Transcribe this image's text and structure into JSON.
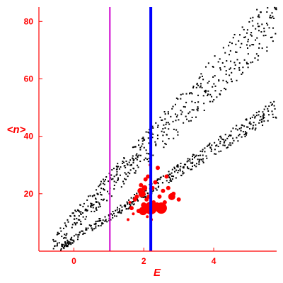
{
  "chart_data": {
    "type": "scatter",
    "title": "",
    "xlabel": "E",
    "ylabel": "<n>",
    "xlim": [
      -1.0,
      5.8
    ],
    "ylim": [
      0,
      85
    ],
    "xticks": [
      0,
      2,
      4
    ],
    "yticks": [
      20,
      40,
      60,
      80
    ],
    "grid": false,
    "legend": "none",
    "colors": {
      "axis": "#ff0000",
      "black_points": "#000000",
      "red_points": "#ff0000",
      "blue_line": "#0000ff",
      "magenta_line": "#cc00cc"
    },
    "vertical_lines": [
      {
        "name": "magenta",
        "x": 1.03,
        "color": "#cc00cc"
      },
      {
        "name": "blue",
        "x": 2.2,
        "color": "#0000ff"
      }
    ],
    "upper_band": {
      "x_start": -0.6,
      "x_end": 5.8,
      "y_start": 3,
      "y_end": 82,
      "spread": 7
    },
    "lower_band": {
      "x_start": -0.4,
      "x_end": 5.8,
      "y_start": 1,
      "y_end": 50,
      "spread": 2.5
    },
    "red_points": [
      {
        "x": 1.65,
        "y": 15,
        "size": 3
      },
      {
        "x": 1.7,
        "y": 13,
        "size": 2
      },
      {
        "x": 1.75,
        "y": 18,
        "size": 3
      },
      {
        "x": 1.8,
        "y": 19,
        "size": 3
      },
      {
        "x": 1.85,
        "y": 14,
        "size": 3
      },
      {
        "x": 1.9,
        "y": 21,
        "size": 4
      },
      {
        "x": 1.92,
        "y": 23,
        "size": 3
      },
      {
        "x": 1.95,
        "y": 20,
        "size": 5
      },
      {
        "x": 1.98,
        "y": 14,
        "size": 6
      },
      {
        "x": 2.0,
        "y": 16,
        "size": 4
      },
      {
        "x": 2.02,
        "y": 22,
        "size": 4
      },
      {
        "x": 2.05,
        "y": 25,
        "size": 3
      },
      {
        "x": 2.08,
        "y": 18,
        "size": 3
      },
      {
        "x": 2.1,
        "y": 12,
        "size": 2
      },
      {
        "x": 2.12,
        "y": 26,
        "size": 3
      },
      {
        "x": 2.15,
        "y": 19,
        "size": 3
      },
      {
        "x": 2.2,
        "y": 15,
        "size": 9
      },
      {
        "x": 2.25,
        "y": 22,
        "size": 3
      },
      {
        "x": 2.28,
        "y": 17,
        "size": 3
      },
      {
        "x": 2.3,
        "y": 15,
        "size": 5
      },
      {
        "x": 2.33,
        "y": 24,
        "size": 3
      },
      {
        "x": 2.38,
        "y": 16,
        "size": 4
      },
      {
        "x": 2.4,
        "y": 29,
        "size": 3
      },
      {
        "x": 2.45,
        "y": 19,
        "size": 3
      },
      {
        "x": 2.5,
        "y": 15,
        "size": 8
      },
      {
        "x": 2.55,
        "y": 21,
        "size": 3
      },
      {
        "x": 2.6,
        "y": 17,
        "size": 3
      },
      {
        "x": 2.65,
        "y": 26,
        "size": 3
      },
      {
        "x": 2.7,
        "y": 22,
        "size": 3
      },
      {
        "x": 2.8,
        "y": 19,
        "size": 5
      },
      {
        "x": 2.85,
        "y": 20,
        "size": 3
      },
      {
        "x": 3.0,
        "y": 18,
        "size": 3
      },
      {
        "x": 1.55,
        "y": 11,
        "size": 2
      },
      {
        "x": 1.6,
        "y": 17,
        "size": 2
      },
      {
        "x": 2.18,
        "y": 30,
        "size": 2
      },
      {
        "x": 2.22,
        "y": 11,
        "size": 2
      }
    ]
  }
}
